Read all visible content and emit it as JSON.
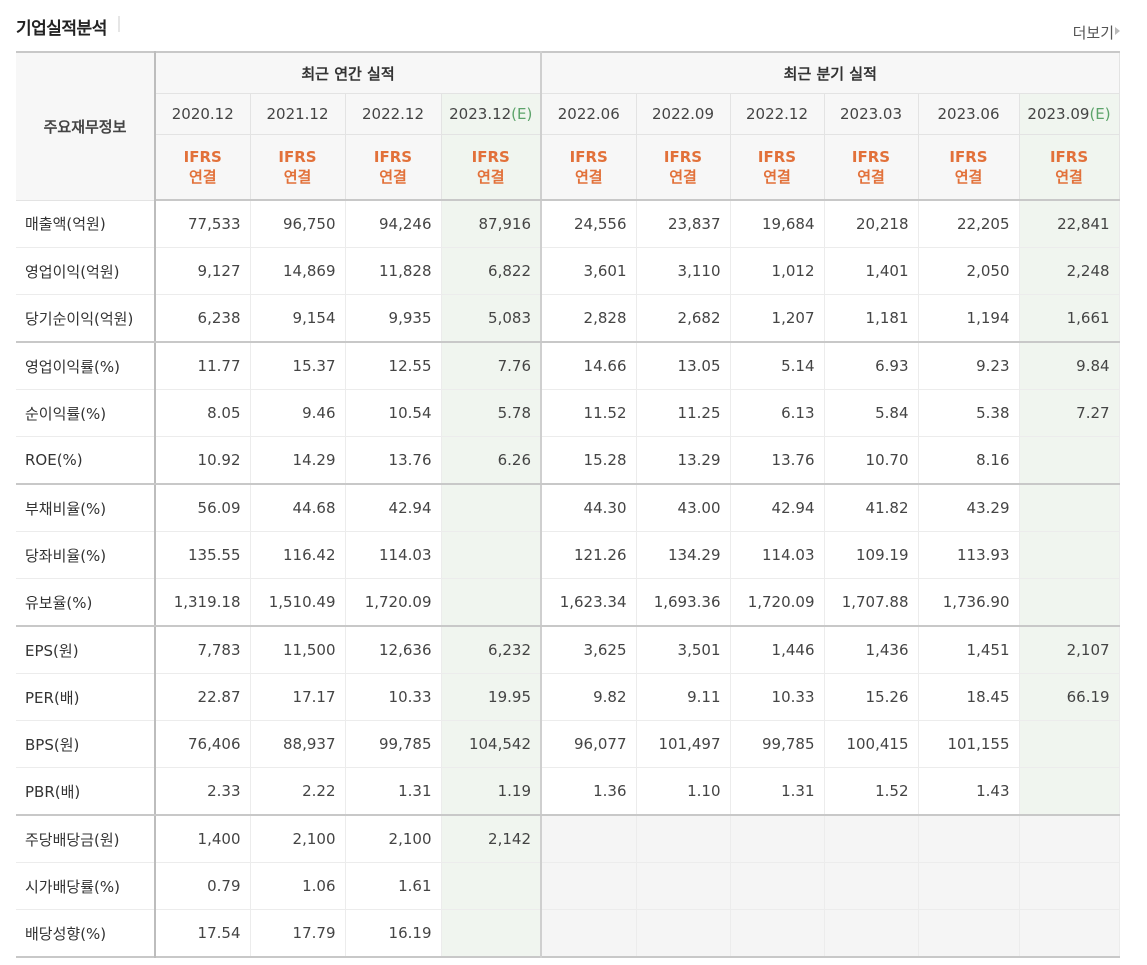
{
  "title": "기업실적분석",
  "more_label": "더보기",
  "header": {
    "row_label": "주요재무정보",
    "annual_group": "최근 연간 실적",
    "quarter_group": "최근 분기 실적",
    "columns": [
      {
        "date": "2020.12",
        "est": ""
      },
      {
        "date": "2021.12",
        "est": ""
      },
      {
        "date": "2022.12",
        "est": ""
      },
      {
        "date": "2023.12",
        "est": "(E)"
      },
      {
        "date": "2022.06",
        "est": ""
      },
      {
        "date": "2022.09",
        "est": ""
      },
      {
        "date": "2022.12",
        "est": ""
      },
      {
        "date": "2023.03",
        "est": ""
      },
      {
        "date": "2023.06",
        "est": ""
      },
      {
        "date": "2023.09",
        "est": "(E)"
      }
    ],
    "basis_line1": "IFRS",
    "basis_line2": "연결"
  },
  "rows": [
    {
      "label": "매출액(억원)",
      "values": [
        "77,533",
        "96,750",
        "94,246",
        "87,916",
        "24,556",
        "23,837",
        "19,684",
        "20,218",
        "22,205",
        "22,841"
      ]
    },
    {
      "label": "영업이익(억원)",
      "values": [
        "9,127",
        "14,869",
        "11,828",
        "6,822",
        "3,601",
        "3,110",
        "1,012",
        "1,401",
        "2,050",
        "2,248"
      ]
    },
    {
      "label": "당기순이익(억원)",
      "values": [
        "6,238",
        "9,154",
        "9,935",
        "5,083",
        "2,828",
        "2,682",
        "1,207",
        "1,181",
        "1,194",
        "1,661"
      ]
    },
    {
      "label": "영업이익률(%)",
      "values": [
        "11.77",
        "15.37",
        "12.55",
        "7.76",
        "14.66",
        "13.05",
        "5.14",
        "6.93",
        "9.23",
        "9.84"
      ]
    },
    {
      "label": "순이익률(%)",
      "values": [
        "8.05",
        "9.46",
        "10.54",
        "5.78",
        "11.52",
        "11.25",
        "6.13",
        "5.84",
        "5.38",
        "7.27"
      ]
    },
    {
      "label": "ROE(%)",
      "values": [
        "10.92",
        "14.29",
        "13.76",
        "6.26",
        "15.28",
        "13.29",
        "13.76",
        "10.70",
        "8.16",
        ""
      ]
    },
    {
      "label": "부채비율(%)",
      "values": [
        "56.09",
        "44.68",
        "42.94",
        "",
        "44.30",
        "43.00",
        "42.94",
        "41.82",
        "43.29",
        ""
      ]
    },
    {
      "label": "당좌비율(%)",
      "values": [
        "135.55",
        "116.42",
        "114.03",
        "",
        "121.26",
        "134.29",
        "114.03",
        "109.19",
        "113.93",
        ""
      ]
    },
    {
      "label": "유보율(%)",
      "values": [
        "1,319.18",
        "1,510.49",
        "1,720.09",
        "",
        "1,623.34",
        "1,693.36",
        "1,720.09",
        "1,707.88",
        "1,736.90",
        ""
      ]
    },
    {
      "label": "EPS(원)",
      "values": [
        "7,783",
        "11,500",
        "12,636",
        "6,232",
        "3,625",
        "3,501",
        "1,446",
        "1,436",
        "1,451",
        "2,107"
      ]
    },
    {
      "label": "PER(배)",
      "values": [
        "22.87",
        "17.17",
        "10.33",
        "19.95",
        "9.82",
        "9.11",
        "10.33",
        "15.26",
        "18.45",
        "66.19"
      ]
    },
    {
      "label": "BPS(원)",
      "values": [
        "76,406",
        "88,937",
        "99,785",
        "104,542",
        "96,077",
        "101,497",
        "99,785",
        "100,415",
        "101,155",
        ""
      ]
    },
    {
      "label": "PBR(배)",
      "values": [
        "2.33",
        "2.22",
        "1.31",
        "1.19",
        "1.36",
        "1.10",
        "1.31",
        "1.52",
        "1.43",
        ""
      ]
    },
    {
      "label": "주당배당금(원)",
      "values": [
        "1,400",
        "2,100",
        "2,100",
        "2,142",
        "",
        "",
        "",
        "",
        "",
        ""
      ]
    },
    {
      "label": "시가배당률(%)",
      "values": [
        "0.79",
        "1.06",
        "1.61",
        "",
        "",
        "",
        "",
        "",
        "",
        ""
      ]
    },
    {
      "label": "배당성향(%)",
      "values": [
        "17.54",
        "17.79",
        "16.19",
        "",
        "",
        "",
        "",
        "",
        "",
        ""
      ]
    }
  ]
}
